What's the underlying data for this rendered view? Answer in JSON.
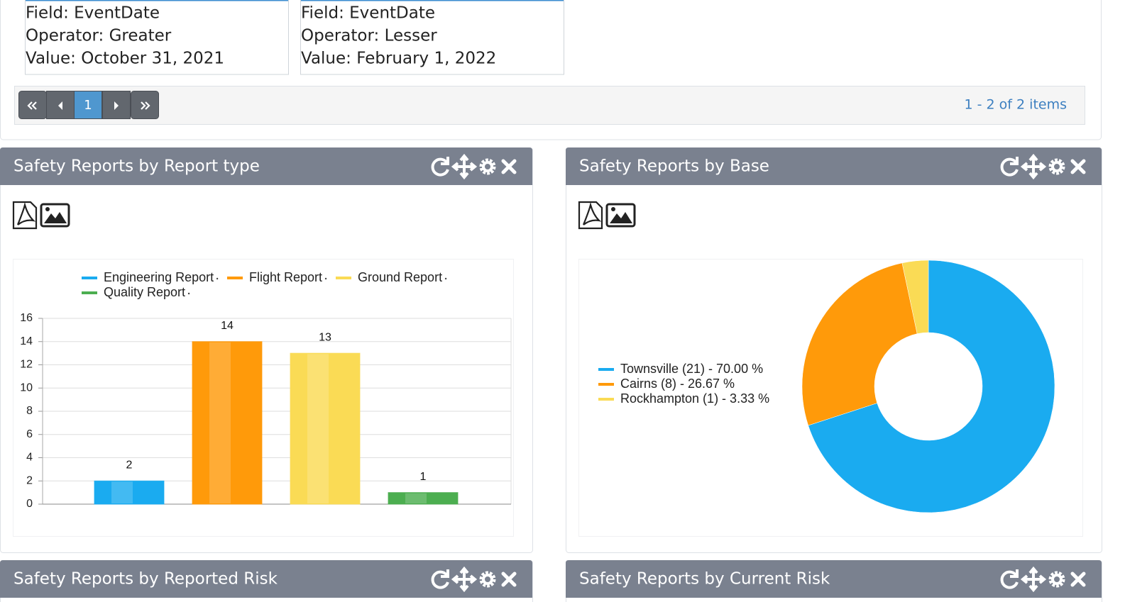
{
  "filters": [
    {
      "lines": [
        "Field: EventDate",
        "Operator: Greater",
        "Value: October 31, 2021"
      ]
    },
    {
      "lines": [
        "Field: EventDate",
        "Operator: Lesser",
        "Value: February 1, 2022"
      ]
    }
  ],
  "pager": {
    "page": "1",
    "summary": "1 - 2 of 2 items"
  },
  "widgets": [
    {
      "title": "Safety Reports by Report type",
      "chart": {
        "type": "bar",
        "series": [
          {
            "name": "Engineering Report",
            "color": "#1aabf0",
            "values": [
              2
            ]
          },
          {
            "name": "Flight Report",
            "color": "#ff9a0a",
            "values": [
              14
            ]
          },
          {
            "name": "Ground Report",
            "color": "#fadb55",
            "values": [
              13
            ]
          },
          {
            "name": "Quality Report",
            "color": "#4cae50",
            "values": [
              1
            ]
          }
        ],
        "ylim": [
          0,
          16
        ],
        "yticks": [
          0,
          2,
          4,
          6,
          8,
          10,
          12,
          14,
          16
        ],
        "grid": true,
        "legend": "top"
      }
    },
    {
      "title": "Safety Reports by Base",
      "chart": {
        "type": "donut",
        "categories": [
          "Townsville (21) - 70.00 %",
          "Cairns (8) - 26.67 %",
          "Rockhampton (1) - 3.33 %"
        ],
        "values": [
          21,
          8,
          1
        ],
        "colors": [
          "#1aabf0",
          "#ff9a0a",
          "#fadb55"
        ],
        "legend": "left"
      }
    },
    {
      "title": "Safety Reports by Reported Risk"
    },
    {
      "title": "Safety Reports by Current Risk"
    }
  ]
}
